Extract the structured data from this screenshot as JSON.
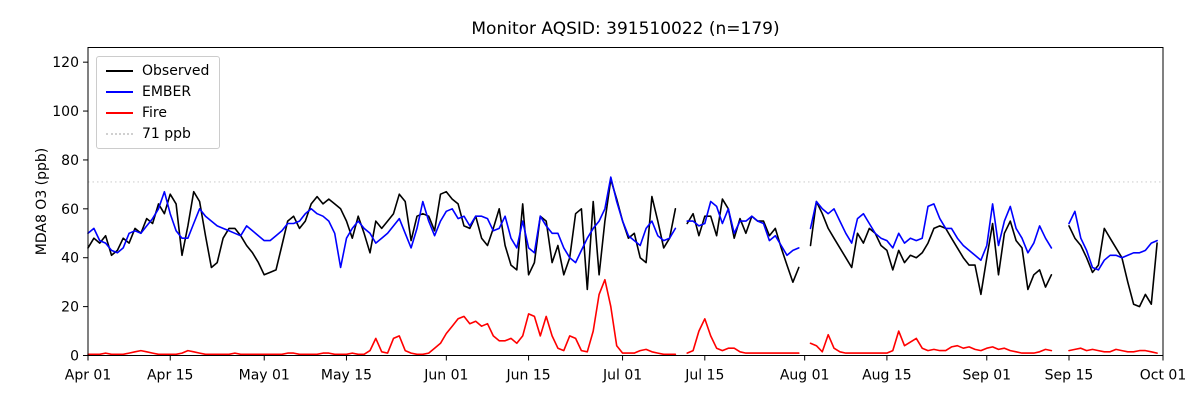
{
  "chart_data": {
    "type": "line",
    "title": "Monitor AQSID: 391510022 (n=179)",
    "xlabel": "",
    "ylabel": "MDA8 O3 (ppb)",
    "grid": false,
    "legend_position": "upper left",
    "xlim_days": [
      0,
      183
    ],
    "ylim": [
      0,
      126
    ],
    "y_ticks": [
      0,
      20,
      40,
      60,
      80,
      100,
      120
    ],
    "x_ticks": [
      {
        "label": "Apr 01",
        "day": 0
      },
      {
        "label": "Apr 15",
        "day": 14
      },
      {
        "label": "May 01",
        "day": 30
      },
      {
        "label": "May 15",
        "day": 44
      },
      {
        "label": "Jun 01",
        "day": 61
      },
      {
        "label": "Jun 15",
        "day": 75
      },
      {
        "label": "Jul 01",
        "day": 91
      },
      {
        "label": "Jul 15",
        "day": 105
      },
      {
        "label": "Aug 01",
        "day": 122
      },
      {
        "label": "Aug 15",
        "day": 136
      },
      {
        "label": "Sep 01",
        "day": 153
      },
      {
        "label": "Sep 15",
        "day": 167
      },
      {
        "label": "Oct 01",
        "day": 183
      }
    ],
    "threshold": {
      "label": "71 ppb",
      "value": 71,
      "color": "#d0d0d0",
      "style": "dotted"
    },
    "series": [
      {
        "name": "Observed",
        "color": "#000000",
        "values": [
          44,
          48,
          46,
          49,
          41,
          43,
          48,
          46,
          52,
          50,
          56,
          54,
          62,
          58,
          66,
          62,
          41,
          53,
          67,
          63,
          49,
          36,
          38,
          48,
          52,
          52,
          49,
          45,
          42,
          38,
          33,
          34,
          35,
          45,
          55,
          57,
          52,
          55,
          62,
          65,
          62,
          64,
          62,
          60,
          55,
          48,
          57,
          50,
          42,
          55,
          52,
          55,
          58,
          66,
          63,
          47,
          57,
          58,
          57,
          51,
          66,
          67,
          64,
          62,
          53,
          52,
          57,
          48,
          45,
          52,
          60,
          45,
          37,
          35,
          62,
          33,
          38,
          57,
          55,
          38,
          45,
          33,
          40,
          58,
          60,
          27,
          63,
          33,
          55,
          72,
          64,
          55,
          48,
          50,
          40,
          38,
          65,
          55,
          44,
          48,
          60,
          null,
          54,
          58,
          49,
          57,
          57,
          49,
          64,
          60,
          48,
          56,
          50,
          57,
          55,
          55,
          49,
          52,
          44,
          37,
          30,
          36,
          null,
          45,
          63,
          58,
          52,
          48,
          44,
          40,
          36,
          50,
          46,
          52,
          50,
          45,
          43,
          35,
          43,
          38,
          41,
          40,
          42,
          46,
          52,
          53,
          52,
          48,
          44,
          40,
          37,
          37,
          25,
          40,
          54,
          33,
          50,
          55,
          47,
          44,
          27,
          33,
          35,
          28,
          33,
          null,
          null,
          53,
          48,
          45,
          40,
          34,
          37,
          52,
          48,
          44,
          40,
          30,
          21,
          20,
          25,
          21,
          46
        ]
      },
      {
        "name": "EMBER",
        "color": "#0000ff",
        "values": [
          50,
          52,
          47,
          46,
          43,
          42,
          44,
          50,
          51,
          50,
          53,
          56,
          60,
          67,
          58,
          51,
          48,
          48,
          54,
          60,
          57,
          55,
          53,
          52,
          51,
          50,
          49,
          53,
          51,
          49,
          47,
          47,
          49,
          51,
          54,
          54,
          55,
          58,
          60,
          58,
          57,
          55,
          50,
          36,
          48,
          52,
          55,
          52,
          50,
          46,
          48,
          50,
          53,
          56,
          50,
          44,
          52,
          63,
          55,
          49,
          55,
          59,
          60,
          56,
          57,
          53,
          57,
          57,
          56,
          51,
          52,
          57,
          48,
          44,
          55,
          44,
          42,
          57,
          53,
          50,
          50,
          44,
          40,
          38,
          43,
          48,
          52,
          55,
          60,
          73,
          63,
          55,
          49,
          47,
          45,
          52,
          55,
          49,
          47,
          48,
          52,
          null,
          55,
          55,
          53,
          54,
          63,
          61,
          54,
          60,
          50,
          55,
          55,
          57,
          55,
          54,
          47,
          49,
          45,
          41,
          43,
          44,
          null,
          52,
          63,
          60,
          58,
          60,
          55,
          50,
          46,
          56,
          58,
          54,
          50,
          48,
          47,
          44,
          50,
          46,
          48,
          47,
          48,
          61,
          62,
          56,
          52,
          52,
          48,
          45,
          43,
          41,
          39,
          45,
          62,
          45,
          55,
          61,
          52,
          48,
          42,
          46,
          53,
          48,
          44,
          null,
          null,
          54,
          59,
          48,
          43,
          36,
          35,
          39,
          41,
          41,
          40,
          41,
          42,
          42,
          43,
          46,
          47
        ]
      },
      {
        "name": "Fire",
        "color": "#ff0000",
        "values": [
          0.5,
          0.5,
          0.5,
          1,
          0.5,
          0.5,
          0.5,
          1,
          1.5,
          2,
          1.5,
          1,
          0.5,
          0.5,
          0.5,
          0.5,
          1,
          2,
          1.5,
          1,
          0.5,
          0.5,
          0.5,
          0.5,
          0.5,
          1,
          0.5,
          0.5,
          0.5,
          0.5,
          0.5,
          0.5,
          0.5,
          0.5,
          1,
          1,
          0.5,
          0.5,
          0.5,
          0.5,
          1,
          1,
          0.5,
          0.5,
          0.5,
          1,
          0.5,
          0.5,
          2,
          7,
          1.5,
          1,
          7,
          8,
          2,
          1,
          0.5,
          0.5,
          1,
          3,
          5,
          9,
          12,
          15,
          16,
          13,
          14,
          12,
          13,
          8,
          6,
          6,
          7,
          5,
          8,
          17,
          16,
          8,
          16,
          8,
          3,
          2,
          8,
          7,
          2,
          1.5,
          10,
          25,
          31,
          20,
          4,
          1,
          1,
          1,
          2,
          2.5,
          1.5,
          1,
          0.5,
          0.5,
          0.5,
          null,
          1,
          2,
          10,
          15,
          8,
          3,
          2,
          3,
          3,
          1.5,
          1,
          1,
          1,
          1,
          1,
          1,
          1,
          1,
          1,
          1,
          null,
          5,
          4,
          1.5,
          8.5,
          3,
          1.5,
          1,
          1,
          1,
          1,
          1,
          1,
          1,
          1,
          2,
          10,
          4,
          5.5,
          7,
          3,
          2,
          2.5,
          2,
          2,
          3.5,
          4,
          3,
          3.5,
          2.5,
          2,
          3,
          3.5,
          2.5,
          3,
          2,
          1.5,
          1,
          1,
          1,
          1.5,
          2.5,
          2,
          null,
          null,
          2,
          2.5,
          3,
          2,
          2.5,
          2,
          1.5,
          1.5,
          2.5,
          2,
          1.5,
          1.5,
          2,
          2,
          1.5,
          1
        ]
      }
    ]
  }
}
